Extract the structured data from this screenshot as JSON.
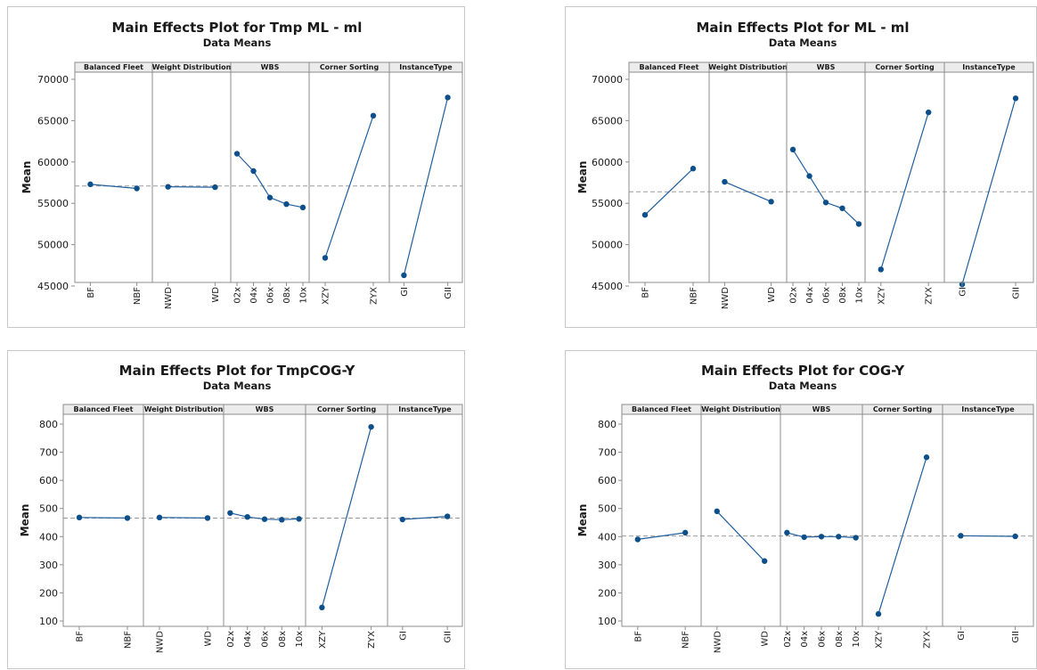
{
  "chart_data": [
    {
      "type": "line",
      "title": "Main Effects Plot for Tmp ML - ml",
      "subtitle": "Data Means",
      "ylabel": "Mean",
      "ylim": [
        43500,
        71000
      ],
      "yticks": [
        45000,
        50000,
        55000,
        60000,
        65000,
        70000
      ],
      "reference_line": 57100,
      "grid": false,
      "series": [
        {
          "name": "Balanced Fleet",
          "categories": [
            "BF",
            "NBF"
          ],
          "values": [
            57300,
            56800
          ]
        },
        {
          "name": "Weight Distribution",
          "categories": [
            "NWD",
            "WD"
          ],
          "values": [
            57000,
            56950
          ]
        },
        {
          "name": "WBS",
          "categories": [
            "02x",
            "04x",
            "06x",
            "08x",
            "10x"
          ],
          "values": [
            61000,
            58900,
            55700,
            54900,
            54500
          ]
        },
        {
          "name": "Corner Sorting",
          "categories": [
            "XZY",
            "ZYX"
          ],
          "values": [
            48400,
            65600
          ]
        },
        {
          "name": "InstanceType",
          "categories": [
            "GI",
            "GII"
          ],
          "values": [
            46300,
            67800
          ]
        }
      ]
    },
    {
      "type": "line",
      "title": "Main Effects Plot for ML - ml",
      "subtitle": "Data Means",
      "ylabel": "Mean",
      "ylim": [
        43500,
        71000
      ],
      "yticks": [
        45000,
        50000,
        55000,
        60000,
        65000,
        70000
      ],
      "reference_line": 56400,
      "grid": false,
      "series": [
        {
          "name": "Balanced Fleet",
          "categories": [
            "BF",
            "NBF"
          ],
          "values": [
            53600,
            59200
          ]
        },
        {
          "name": "Weight Distribution",
          "categories": [
            "NWD",
            "WD"
          ],
          "values": [
            57600,
            55200
          ]
        },
        {
          "name": "WBS",
          "categories": [
            "02x",
            "04x",
            "06x",
            "08x",
            "10x"
          ],
          "values": [
            61500,
            58300,
            55100,
            54400,
            52500
          ]
        },
        {
          "name": "Corner Sorting",
          "categories": [
            "XZY",
            "ZYX"
          ],
          "values": [
            47000,
            66000
          ]
        },
        {
          "name": "InstanceType",
          "categories": [
            "GI",
            "GII"
          ],
          "values": [
            45200,
            67700
          ]
        }
      ]
    },
    {
      "type": "line",
      "title": "Main Effects Plot for TmpCOG-Y",
      "subtitle": "Data Means",
      "ylabel": "Mean",
      "ylim": [
        85,
        835
      ],
      "yticks": [
        100,
        200,
        300,
        400,
        500,
        600,
        700,
        800
      ],
      "reference_line": 466,
      "grid": false,
      "series": [
        {
          "name": "Balanced Fleet",
          "categories": [
            "BF",
            "NBF"
          ],
          "values": [
            468,
            466
          ]
        },
        {
          "name": "Weight Distribution",
          "categories": [
            "NWD",
            "WD"
          ],
          "values": [
            468,
            466
          ]
        },
        {
          "name": "WBS",
          "categories": [
            "02x",
            "04x",
            "06x",
            "08x",
            "10x"
          ],
          "values": [
            484,
            470,
            462,
            460,
            463
          ]
        },
        {
          "name": "Corner Sorting",
          "categories": [
            "XZY",
            "ZYX"
          ],
          "values": [
            148,
            790
          ]
        },
        {
          "name": "InstanceType",
          "categories": [
            "GI",
            "GII"
          ],
          "values": [
            461,
            472
          ]
        }
      ]
    },
    {
      "type": "line",
      "title": "Main Effects Plot for COG-Y",
      "subtitle": "Data Means",
      "ylabel": "Mean",
      "ylim": [
        85,
        835
      ],
      "yticks": [
        100,
        200,
        300,
        400,
        500,
        600,
        700,
        800
      ],
      "reference_line": 402,
      "grid": false,
      "series": [
        {
          "name": "Balanced Fleet",
          "categories": [
            "BF",
            "NBF"
          ],
          "values": [
            390,
            414
          ]
        },
        {
          "name": "Weight Distribution",
          "categories": [
            "NWD",
            "WD"
          ],
          "values": [
            490,
            313
          ]
        },
        {
          "name": "WBS",
          "categories": [
            "02x",
            "04x",
            "06x",
            "08x",
            "10x"
          ],
          "values": [
            414,
            398,
            400,
            400,
            396
          ]
        },
        {
          "name": "Corner Sorting",
          "categories": [
            "XZY",
            "ZYX"
          ],
          "values": [
            125,
            682
          ]
        },
        {
          "name": "InstanceType",
          "categories": [
            "GI",
            "GII"
          ],
          "values": [
            403,
            401
          ]
        }
      ]
    }
  ],
  "colors": {
    "line": "#1f5f9e",
    "point": "#0d4f8b",
    "reference": "#9a9a9a",
    "panel_header": "#ececec",
    "frame": "#8c8c8c"
  }
}
